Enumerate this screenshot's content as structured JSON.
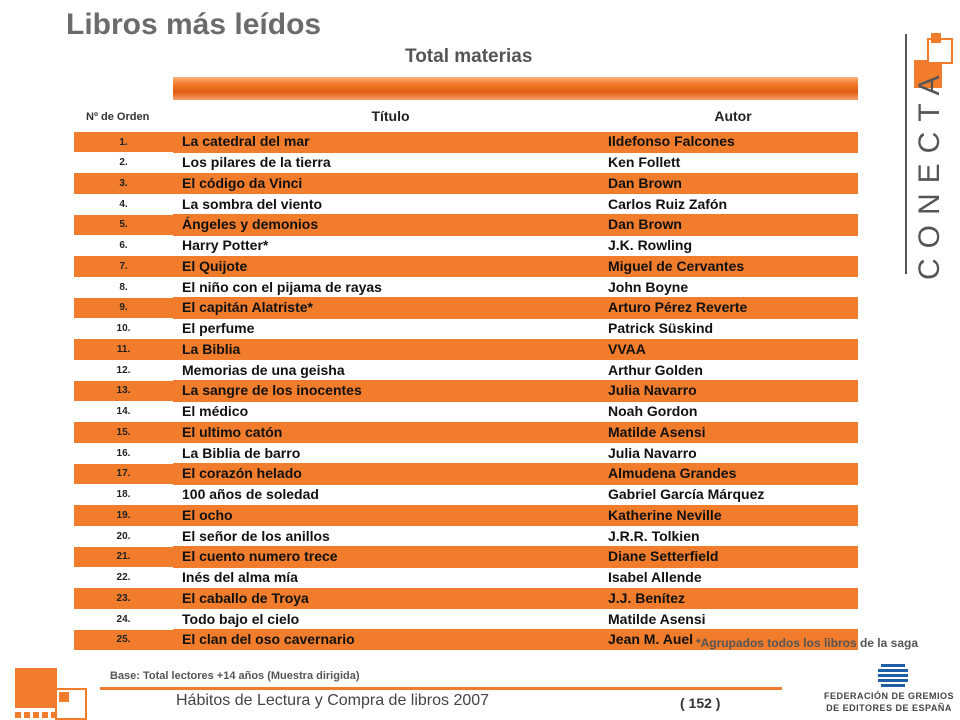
{
  "page": {
    "title": "Libros más leídos",
    "subtitle": "Total materias"
  },
  "table": {
    "headers": {
      "orden": "Nº de Orden",
      "titulo": "Título",
      "autor": "Autor"
    },
    "rows": [
      {
        "num": "1.",
        "titulo": "La catedral del mar",
        "autor": "Ildefonso Falcones"
      },
      {
        "num": "2.",
        "titulo": "Los pilares de la tierra",
        "autor": "Ken Follett"
      },
      {
        "num": "3.",
        "titulo": "El código da Vinci",
        "autor": "Dan Brown"
      },
      {
        "num": "4.",
        "titulo": "La sombra del viento",
        "autor": "Carlos Ruiz Zafón"
      },
      {
        "num": "5.",
        "titulo": "Ángeles y demonios",
        "autor": "Dan Brown"
      },
      {
        "num": "6.",
        "titulo": "Harry Potter*",
        "autor": "J.K. Rowling"
      },
      {
        "num": "7.",
        "titulo": "El Quijote",
        "autor": "Miguel de Cervantes"
      },
      {
        "num": "8.",
        "titulo": "El niño con el pijama de rayas",
        "autor": "John Boyne"
      },
      {
        "num": "9.",
        "titulo": "El capitán Alatriste*",
        "autor": "Arturo Pérez Reverte"
      },
      {
        "num": "10.",
        "titulo": "El perfume",
        "autor": "Patrick Süskind"
      },
      {
        "num": "11.",
        "titulo": "La Biblia",
        "autor": "VVAA"
      },
      {
        "num": "12.",
        "titulo": "Memorias de una geisha",
        "autor": "Arthur Golden"
      },
      {
        "num": "13.",
        "titulo": "La sangre de los inocentes",
        "autor": "Julia Navarro"
      },
      {
        "num": "14.",
        "titulo": "El médico",
        "autor": "Noah Gordon"
      },
      {
        "num": "15.",
        "titulo": "El ultimo catón",
        "autor": "Matilde Asensi"
      },
      {
        "num": "16.",
        "titulo": "La Biblia de barro",
        "autor": "Julia Navarro"
      },
      {
        "num": "17.",
        "titulo": "El corazón helado",
        "autor": "Almudena Grandes"
      },
      {
        "num": "18.",
        "titulo": "100 años de soledad",
        "autor": "Gabriel García Márquez"
      },
      {
        "num": "19.",
        "titulo": "El ocho",
        "autor": "Katherine Neville"
      },
      {
        "num": "20.",
        "titulo": "El señor de los anillos",
        "autor": "J.R.R. Tolkien"
      },
      {
        "num": "21.",
        "titulo": "El cuento numero trece",
        "autor": "Diane Setterfield"
      },
      {
        "num": "22.",
        "titulo": "Inés del alma mía",
        "autor": "Isabel Allende"
      },
      {
        "num": "23.",
        "titulo": "El caballo de Troya",
        "autor": "J.J. Benítez"
      },
      {
        "num": "24.",
        "titulo": "Todo bajo el cielo",
        "autor": "Matilde Asensi"
      },
      {
        "num": "25.",
        "titulo": "El clan del oso cavernario",
        "autor": "Jean M. Auel"
      }
    ]
  },
  "note": "*Agrupados todos los libros de la saga",
  "base": "Base: Total lectores +14 años (Muestra dirigida)",
  "footer": {
    "text": "Hábitos de Lectura y Compra de libros 2007",
    "page": "( 152 )"
  },
  "logos": {
    "conecta": "CONECTA",
    "federacion_line1": "FEDERACIÓN DE GREMIOS",
    "federacion_line2": "DE EDITORES DE ESPAÑA"
  },
  "colors": {
    "accent": "#f07c2c"
  }
}
